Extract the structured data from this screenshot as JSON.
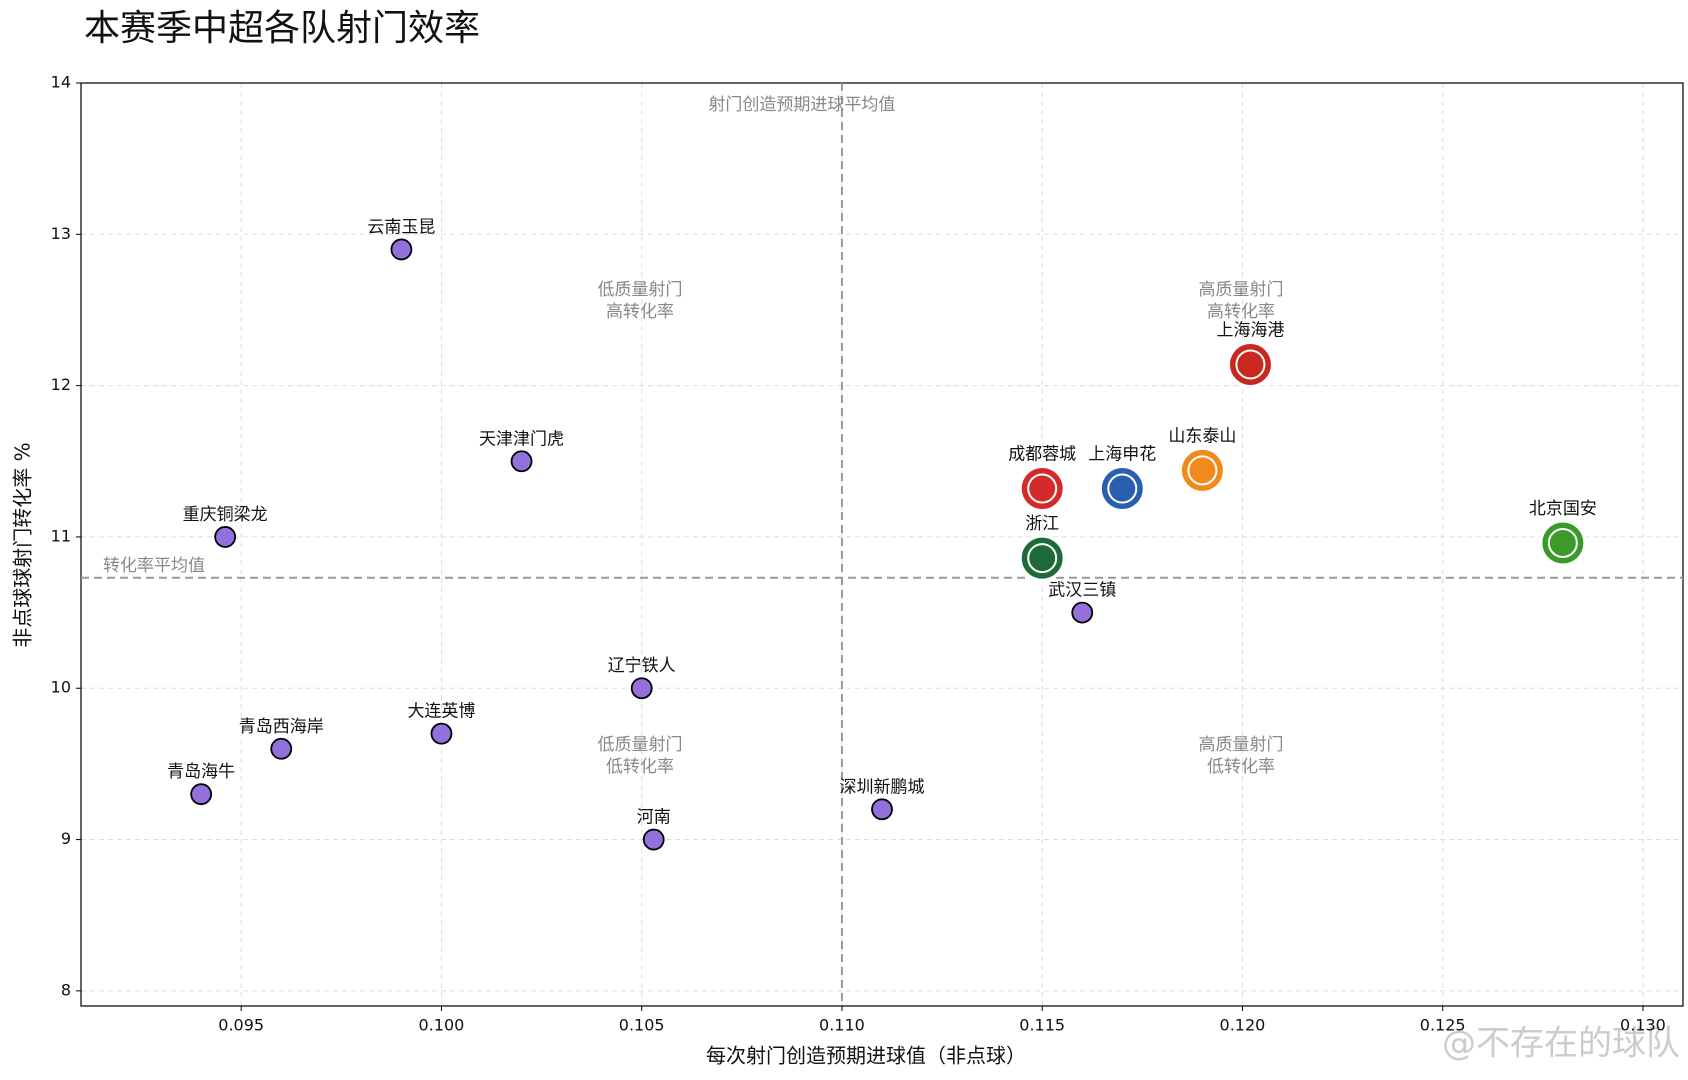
{
  "chart_data": {
    "type": "scatter",
    "title": "本赛季中超各队射门效率",
    "xlabel": "每次射门创造预期进球值（非点球）",
    "ylabel": "非点球球射门转化率 %",
    "xlim": [
      0.091,
      0.131
    ],
    "ylim": [
      7.9,
      14
    ],
    "xticks": [
      0.095,
      {
        "value": 0.1,
        "label": "0.100"
      },
      0.105,
      {
        "value": 0.11,
        "label": "0.110"
      },
      0.115,
      {
        "value": 0.12,
        "label": "0.120"
      },
      0.125,
      {
        "value": 0.13,
        "label": "0.130"
      }
    ],
    "yticks": [
      8,
      9,
      10,
      11,
      12,
      13,
      14
    ],
    "grid": true,
    "color": "#9370db",
    "points": [
      {
        "name": "云南玉昆",
        "x": 0.099,
        "y": 12.9
      },
      {
        "name": "天津津门虎",
        "x": 0.102,
        "y": 11.5
      },
      {
        "name": "重庆铜梁龙",
        "x": 0.0946,
        "y": 11.0
      },
      {
        "name": "辽宁铁人",
        "x": 0.105,
        "y": 10.0
      },
      {
        "name": "大连英博",
        "x": 0.1,
        "y": 9.7
      },
      {
        "name": "青岛西海岸",
        "x": 0.096,
        "y": 9.6
      },
      {
        "name": "青岛海牛",
        "x": 0.094,
        "y": 9.3
      },
      {
        "name": "河南",
        "x": 0.1053,
        "y": 9.0
      },
      {
        "name": "深圳新鹏城",
        "x": 0.111,
        "y": 9.2
      },
      {
        "name": "武汉三镇",
        "x": 0.116,
        "y": 10.5
      },
      {
        "name": "浙江",
        "x": 0.115,
        "y": 10.86,
        "color": "#1e6b3a"
      },
      {
        "name": "成都蓉城",
        "x": 0.115,
        "y": 11.32,
        "color": "#d42a2a"
      },
      {
        "name": "上海申花",
        "x": 0.117,
        "y": 11.32,
        "color": "#2a5fb0"
      },
      {
        "name": "山东泰山",
        "x": 0.119,
        "y": 11.44,
        "color": "#f08a1c"
      },
      {
        "name": "上海海港",
        "x": 0.1202,
        "y": 12.14,
        "color": "#c8281e"
      },
      {
        "name": "北京国安",
        "x": 0.128,
        "y": 10.96,
        "color": "#3a9a2a"
      }
    ],
    "x_mean": {
      "value": 0.11,
      "label": "射门创造预期进球平均值"
    },
    "y_mean": {
      "value": 10.73,
      "label": "转化率平均值"
    },
    "quadrants": [
      [
        "低质量射门",
        "高转化率"
      ],
      [
        "高质量射门",
        "高转化率"
      ],
      [
        "低质量射门",
        "低转化率"
      ],
      [
        "高质量射门",
        "低转化率"
      ]
    ],
    "watermark": "@不存在的球队"
  }
}
